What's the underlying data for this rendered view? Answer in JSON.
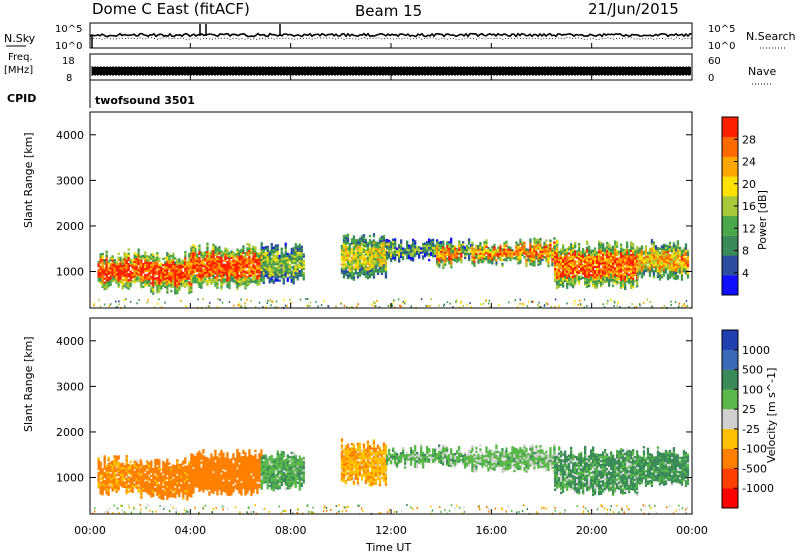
{
  "header": {
    "station": "Dome C East (fitACF)",
    "beam": "Beam 15",
    "date": "21/Jun/2015"
  },
  "sky_panel": {
    "left_label": "N.Sky",
    "left_ticks": [
      "10^5",
      "10^0"
    ],
    "right_ticks": [
      "10^5",
      "10^0"
    ],
    "right_label": "N.Search"
  },
  "freq_panel": {
    "left_label_1": "Freq.",
    "left_label_2": "[MHz]",
    "left_ticks": [
      "18",
      "8"
    ],
    "right_ticks": [
      "60",
      "0"
    ],
    "right_label": "Nave"
  },
  "cpid_panel": {
    "label": "CPID",
    "value": "twofsound 3501"
  },
  "colors": {
    "power": [
      "#1010ff",
      "#2b4f9e",
      "#3a8a5a",
      "#4aa84a",
      "#a8c83a",
      "#ffe100",
      "#ffa500",
      "#ff6a00",
      "#ff2000"
    ],
    "velocity": [
      "#2040b0",
      "#3a6ab8",
      "#3a8a5a",
      "#5ab84a",
      "#d0d0d0",
      "#ffc000",
      "#ff8000",
      "#ff4000",
      "#ff0000"
    ]
  },
  "chart_data": [
    {
      "type": "heatmap",
      "xlabel": "Time UT",
      "ylabel": "Slant Range [km]",
      "ylim": [
        200,
        4500
      ],
      "xlim": [
        0,
        24
      ],
      "yticks": [
        "1000",
        "2000",
        "3000",
        "4000"
      ],
      "colorbar": {
        "label": "Power [dB]",
        "ticks": [
          "4",
          "8",
          "12",
          "16",
          "20",
          "24",
          "28"
        ],
        "range": [
          0,
          32
        ]
      },
      "echo_regions": [
        {
          "t0": 0.3,
          "t1": 2.0,
          "r0": 700,
          "r1": 1350,
          "level": 28
        },
        {
          "t0": 2.0,
          "t1": 4.0,
          "r0": 600,
          "r1": 1300,
          "level": 28
        },
        {
          "t0": 4.0,
          "t1": 6.8,
          "r0": 700,
          "r1": 1500,
          "level": 28
        },
        {
          "t0": 6.8,
          "t1": 8.5,
          "r0": 800,
          "r1": 1500,
          "level": 14
        },
        {
          "t0": 10.0,
          "t1": 11.8,
          "r0": 900,
          "r1": 1700,
          "level": 18
        },
        {
          "t0": 11.8,
          "t1": 15.2,
          "r0": 1300,
          "r1": 1600,
          "level": 12
        },
        {
          "t0": 13.8,
          "t1": 14.8,
          "r0": 1150,
          "r1": 1550,
          "level": 26
        },
        {
          "t0": 15.2,
          "t1": 18.5,
          "r0": 1200,
          "r1": 1600,
          "level": 24
        },
        {
          "t0": 18.5,
          "t1": 21.8,
          "r0": 700,
          "r1": 1550,
          "level": 27
        },
        {
          "t0": 21.8,
          "t1": 23.8,
          "r0": 900,
          "r1": 1550,
          "level": 22
        }
      ]
    },
    {
      "type": "heatmap",
      "xlabel": "Time UT",
      "ylabel": "Slant Range [km]",
      "ylim": [
        200,
        4500
      ],
      "xlim": [
        0,
        24
      ],
      "xticks": [
        "00:00",
        "04:00",
        "08:00",
        "12:00",
        "16:00",
        "20:00",
        "00:00"
      ],
      "yticks": [
        "1000",
        "2000",
        "3000",
        "4000"
      ],
      "colorbar": {
        "label": "Velocity [m s^-1]",
        "ticks": [
          "1000",
          "500",
          "100",
          "25",
          "-25",
          "-100",
          "-500",
          "-1000"
        ]
      },
      "echo_regions": [
        {
          "t0": 0.3,
          "t1": 2.0,
          "r0": 700,
          "r1": 1350,
          "level": -150
        },
        {
          "t0": 2.0,
          "t1": 4.0,
          "r0": 600,
          "r1": 1300,
          "level": -200
        },
        {
          "t0": 4.0,
          "t1": 6.8,
          "r0": 700,
          "r1": 1500,
          "level": -250
        },
        {
          "t0": 6.8,
          "t1": 8.5,
          "r0": 800,
          "r1": 1500,
          "level": 80
        },
        {
          "t0": 10.0,
          "t1": 11.8,
          "r0": 900,
          "r1": 1700,
          "level": -80
        },
        {
          "t0": 11.8,
          "t1": 15.2,
          "r0": 1300,
          "r1": 1600,
          "level": 60
        },
        {
          "t0": 15.2,
          "t1": 18.5,
          "r0": 1200,
          "r1": 1600,
          "level": 50
        },
        {
          "t0": 18.5,
          "t1": 21.8,
          "r0": 700,
          "r1": 1550,
          "level": 120
        },
        {
          "t0": 21.8,
          "t1": 23.8,
          "r0": 900,
          "r1": 1550,
          "level": 150
        }
      ]
    }
  ]
}
